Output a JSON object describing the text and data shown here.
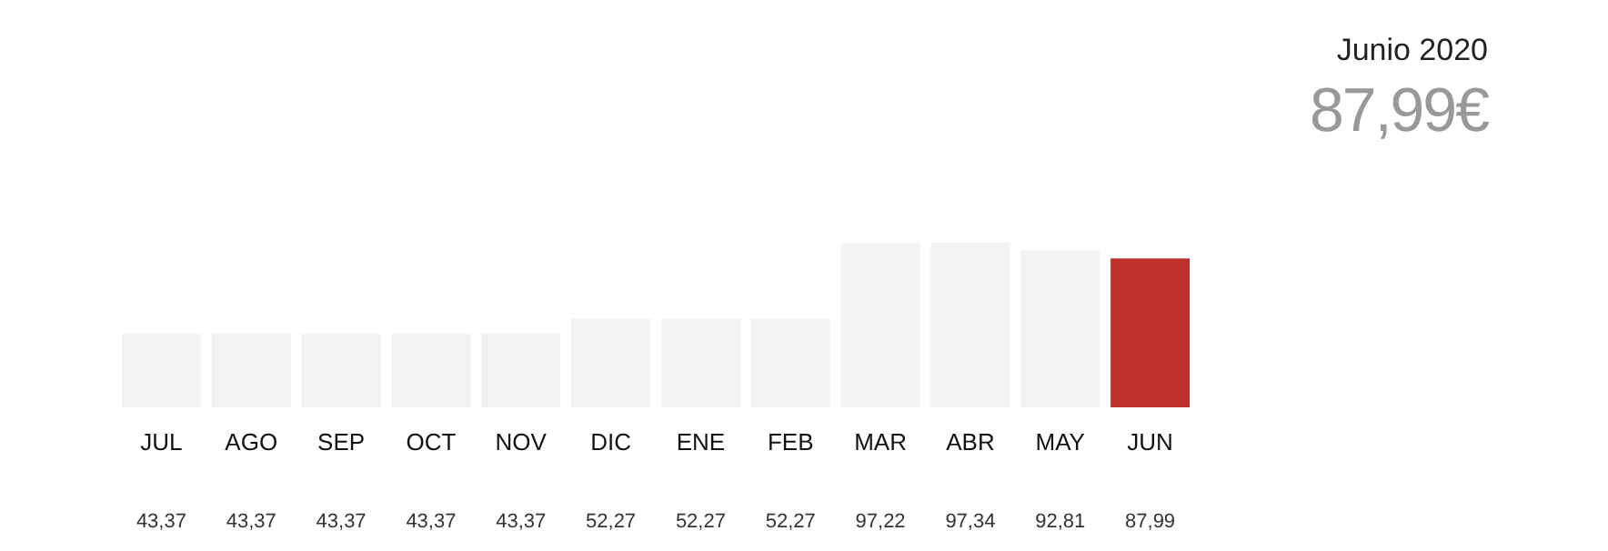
{
  "chart_data": {
    "type": "bar",
    "title": "Junio 2020",
    "subtitle": "87,99€",
    "categories": [
      "JUL",
      "AGO",
      "SEP",
      "OCT",
      "NOV",
      "DIC",
      "ENE",
      "FEB",
      "MAR",
      "ABR",
      "MAY",
      "JUN"
    ],
    "values": [
      43.37,
      43.37,
      43.37,
      43.37,
      43.37,
      52.27,
      52.27,
      52.27,
      97.22,
      97.34,
      92.81,
      87.99
    ],
    "value_labels": [
      "43,37",
      "43,37",
      "43,37",
      "43,37",
      "43,37",
      "52,27",
      "52,27",
      "52,27",
      "97,22",
      "97,34",
      "92,81",
      "87,99"
    ],
    "colors": [
      "#f2f2f2",
      "#f2f2f2",
      "#f2f2f2",
      "#f2f2f2",
      "#f2f2f2",
      "#f2f2f2",
      "#f2f2f2",
      "#f2f2f2",
      "#f2f2f2",
      "#f2f2f2",
      "#f2f2f2",
      "#c0302b"
    ],
    "grid": false,
    "legend": false
  }
}
